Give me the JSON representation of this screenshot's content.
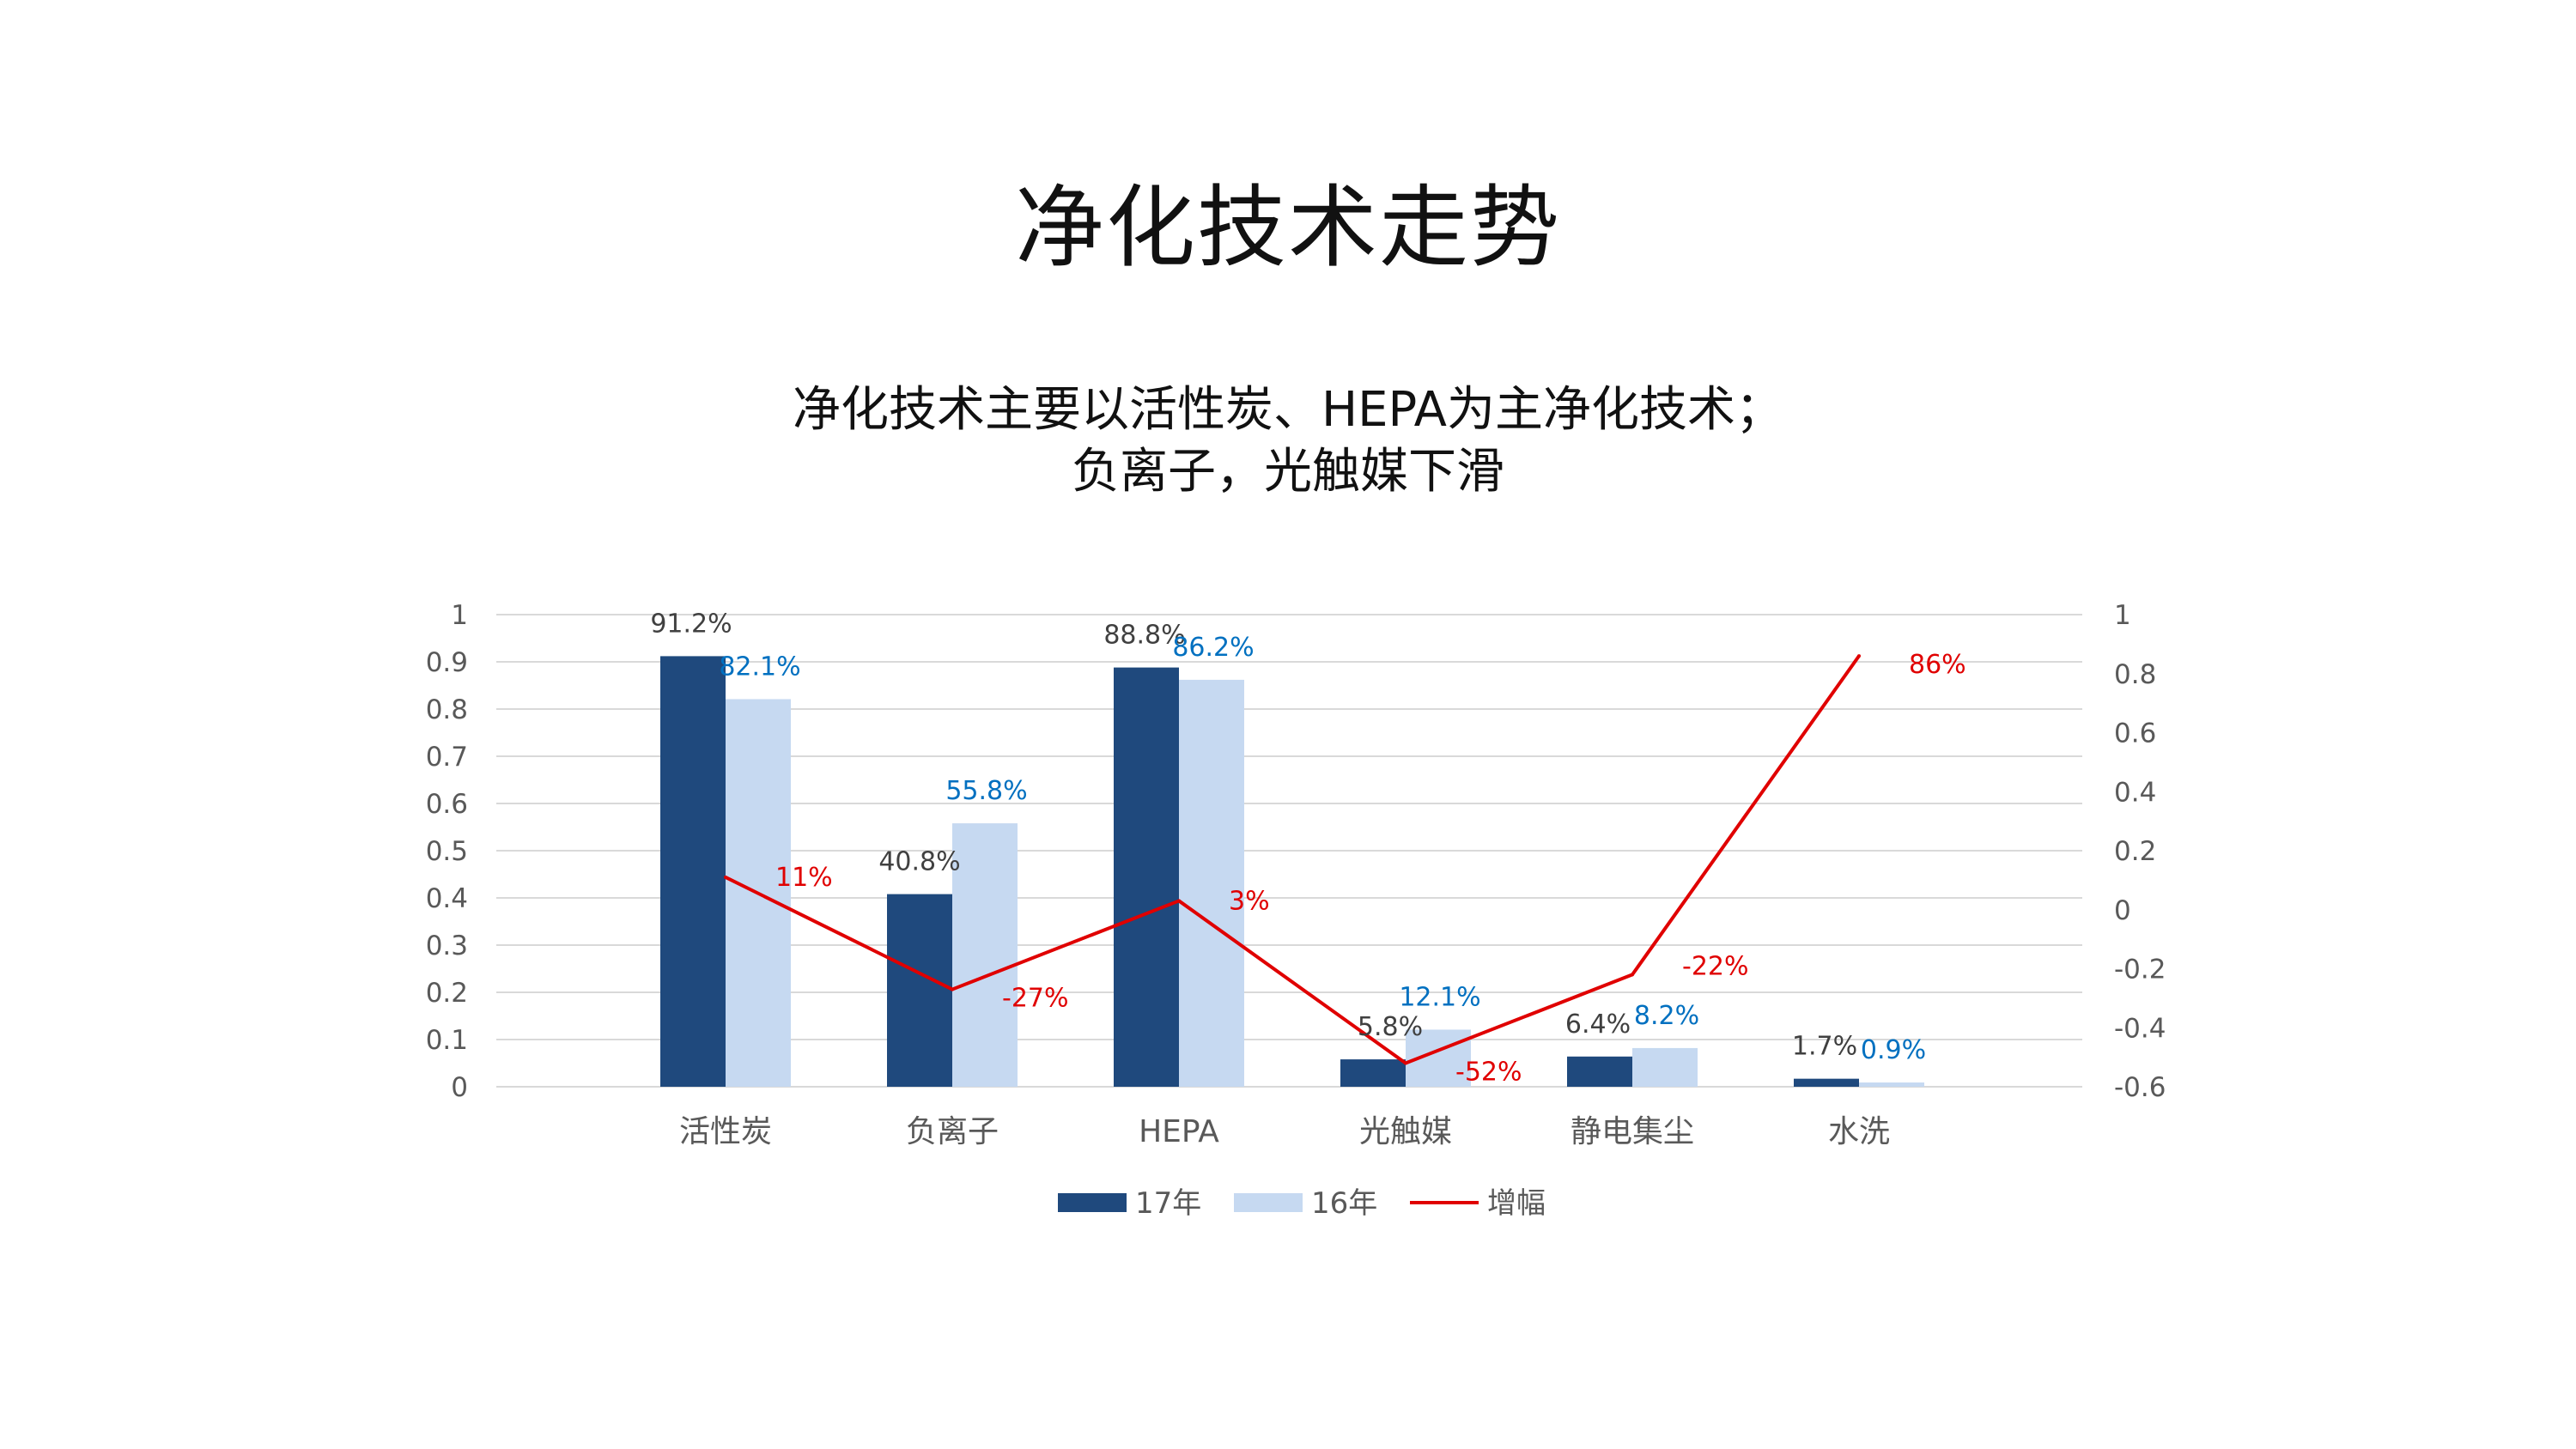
{
  "page": {
    "title": "净化技术走势",
    "subtitle_line1": "净化技术主要以活性炭、HEPA为主净化技术；",
    "subtitle_line2": "负离子，光触媒下滑"
  },
  "chart_data": {
    "type": "bar",
    "title": "",
    "categories": [
      "活性炭",
      "负离子",
      "HEPA",
      "光触媒",
      "静电集尘",
      "水洗"
    ],
    "series": [
      {
        "name": "17年",
        "kind": "bar",
        "axis": "left",
        "color": "#1F497D",
        "values": [
          0.912,
          0.408,
          0.888,
          0.058,
          0.064,
          0.017
        ],
        "labels": [
          "91.2%",
          "40.8%",
          "88.8%",
          "5.8%",
          "6.4%",
          "1.7%"
        ],
        "label_color": "#404040"
      },
      {
        "name": "16年",
        "kind": "bar",
        "axis": "left",
        "color": "#C6D9F1",
        "values": [
          0.821,
          0.558,
          0.862,
          0.121,
          0.082,
          0.009
        ],
        "labels": [
          "82.1%",
          "55.8%",
          "86.2%",
          "12.1%",
          "8.2%",
          "0.9%"
        ],
        "label_color": "#0070C0"
      },
      {
        "name": "增幅",
        "kind": "line",
        "axis": "right",
        "color": "#E00000",
        "values": [
          0.11,
          -0.27,
          0.03,
          -0.52,
          -0.22,
          0.86
        ],
        "labels": [
          "11%",
          "-27%",
          "3%",
          "-52%",
          "-22%",
          "86%"
        ],
        "label_color": "#E00000"
      }
    ],
    "y_left": {
      "min": 0,
      "max": 1,
      "ticks": [
        "0",
        "0.1",
        "0.2",
        "0.3",
        "0.4",
        "0.5",
        "0.6",
        "0.7",
        "0.8",
        "0.9",
        "1"
      ]
    },
    "y_right": {
      "min": -0.6,
      "max": 1,
      "ticks": [
        "-0.6",
        "-0.4",
        "-0.2",
        "0",
        "0.2",
        "0.4",
        "0.6",
        "0.8",
        "1"
      ]
    },
    "grid": true,
    "legend_position": "bottom"
  }
}
